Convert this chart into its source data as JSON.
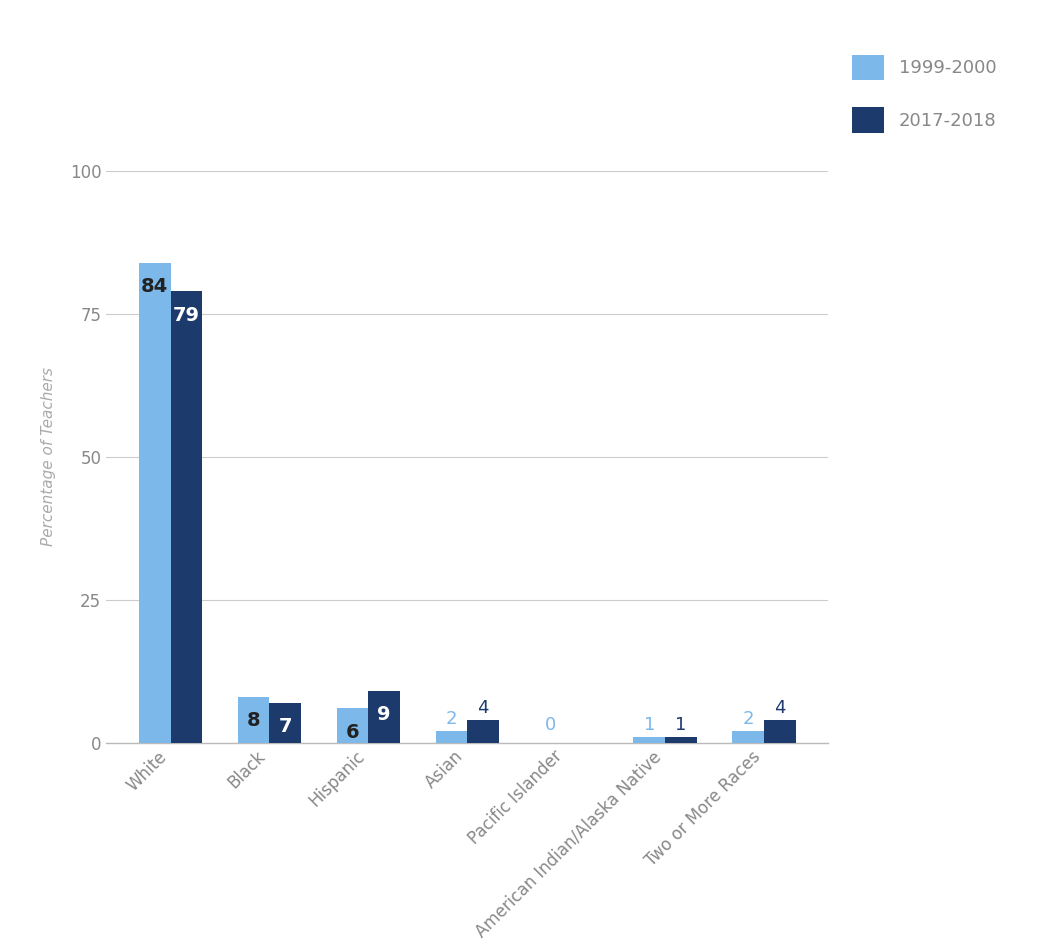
{
  "categories": [
    "White",
    "Black",
    "Hispanic",
    "Asian",
    "Pacific Islander",
    "American Indian/Alaska Native",
    "Two or More Races"
  ],
  "values_1999": [
    84,
    8,
    6,
    2,
    0,
    1,
    2
  ],
  "values_2017": [
    79,
    7,
    9,
    4,
    0,
    1,
    4
  ],
  "color_1999": "#7DB8EA",
  "color_2017": "#1C3A6B",
  "ylabel": "Percentage of Teachers",
  "ylim": [
    0,
    100
  ],
  "yticks": [
    0,
    25,
    50,
    75,
    100
  ],
  "legend_labels": [
    "1999-2000",
    "2017-2018"
  ],
  "bar_width": 0.32,
  "label_color_1999": "#7DB8EA",
  "label_color_2017": "#1C3A6B",
  "label_color_on_bar": "#ffffff",
  "background_color": "#ffffff",
  "grid_color": "#cccccc",
  "tick_color": "#888888",
  "ylabel_color": "#aaaaaa",
  "legend_text_color": "#888888"
}
